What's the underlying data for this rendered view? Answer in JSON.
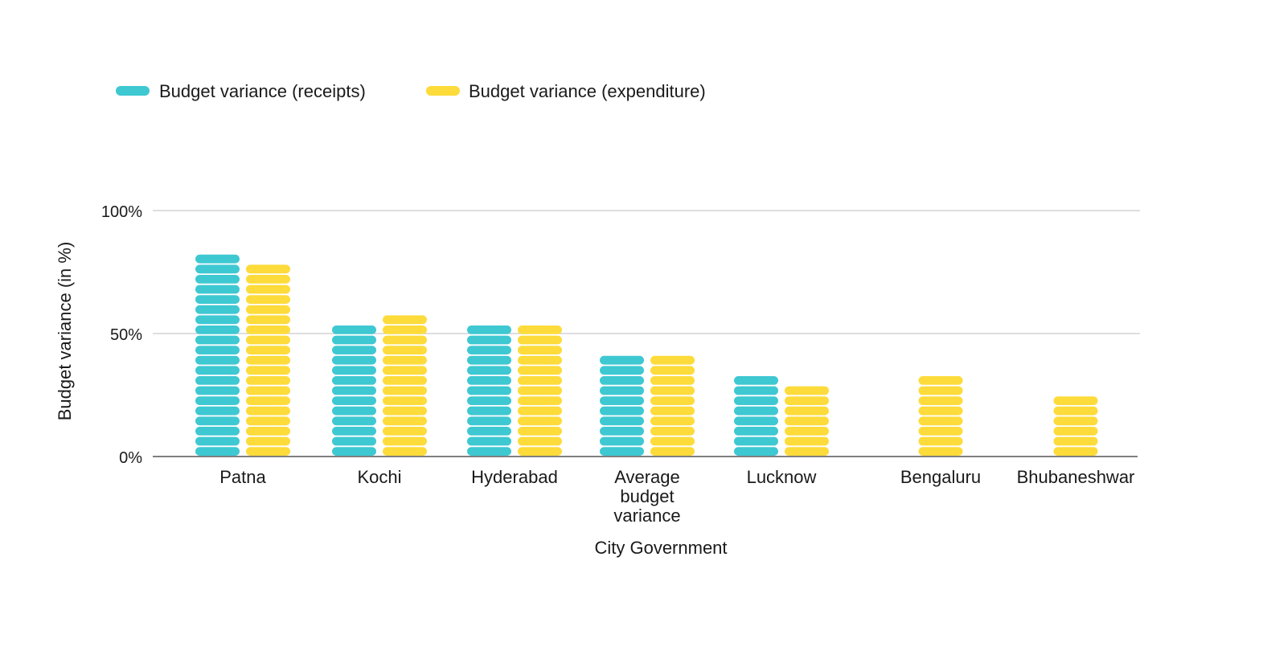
{
  "chart_data": {
    "type": "bar",
    "title": "",
    "xlabel": "City Government",
    "ylabel": "Budget variance (in %)",
    "ylim": [
      0,
      100
    ],
    "yticks": [
      "0%",
      "50%",
      "100%"
    ],
    "ytick_values": [
      0,
      50,
      100
    ],
    "grid": true,
    "legend_position": "top-left",
    "categories": [
      [
        "Patna"
      ],
      [
        "Kochi"
      ],
      [
        "Hyderabad"
      ],
      [
        "Average",
        "budget",
        "variance"
      ],
      [
        "Lucknow"
      ],
      [
        "Bengaluru"
      ],
      [
        "Bhubaneshwar"
      ]
    ],
    "series": [
      {
        "name": "Budget variance (receipts)",
        "color": "#3ec8d2",
        "values": [
          85,
          57,
          57,
          41,
          33,
          null,
          null
        ]
      },
      {
        "name": "Budget variance (expenditure)",
        "color": "#fddb3a",
        "values": [
          80,
          61,
          53,
          44,
          29,
          33,
          26
        ]
      }
    ]
  }
}
